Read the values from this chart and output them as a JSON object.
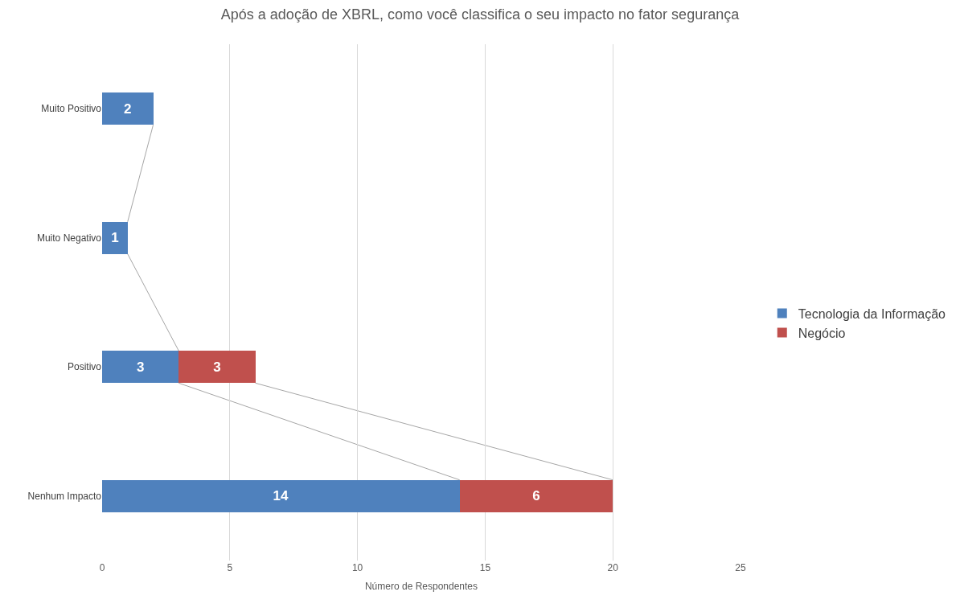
{
  "chart_data": {
    "type": "bar",
    "title": "Após a adoção de XBRL, como você classifica o seu impacto no fator segurança",
    "orientation": "horizontal",
    "stacked": true,
    "categories": [
      "Muito Positivo",
      "Muito Negativo",
      "Positivo",
      "Nenhum Impacto"
    ],
    "series": [
      {
        "name": "Tecnologia da Informação",
        "color": "#4f81bd",
        "values": [
          2,
          1,
          3,
          14
        ]
      },
      {
        "name": "Negócio",
        "color": "#c0504d",
        "values": [
          null,
          null,
          3,
          6
        ]
      }
    ],
    "xlabel": "Número de Respondentes",
    "xlim": [
      0,
      25
    ],
    "xticks": [
      0,
      5,
      10,
      15,
      20,
      25
    ],
    "grid": "x",
    "legend": "right",
    "data_labels": true
  }
}
